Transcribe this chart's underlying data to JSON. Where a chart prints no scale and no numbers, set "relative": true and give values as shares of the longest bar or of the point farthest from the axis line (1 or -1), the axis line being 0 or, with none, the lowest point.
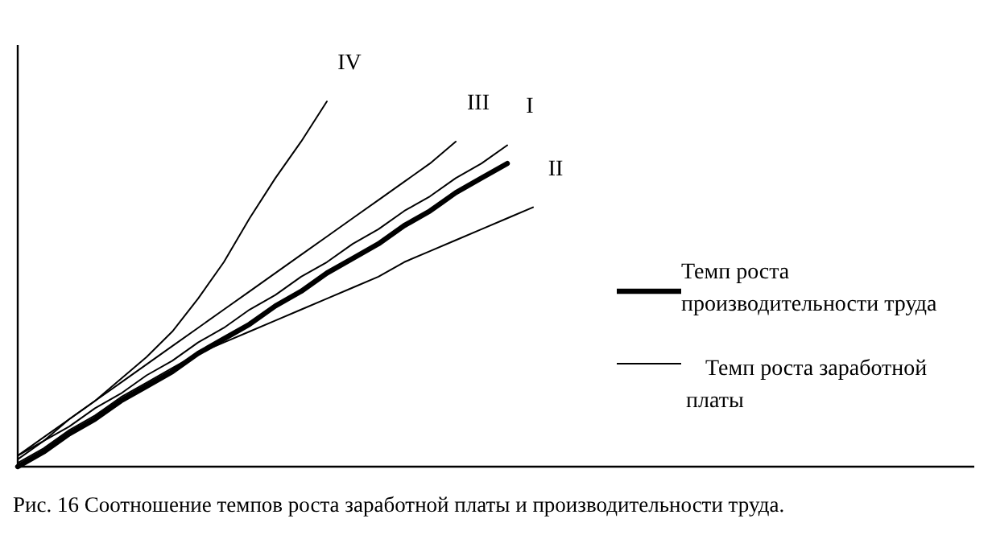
{
  "chart_data": {
    "type": "line",
    "relative": true,
    "legend": "right",
    "categories": [
      null,
      null,
      null,
      null,
      null,
      null,
      null,
      null,
      null,
      null,
      null,
      null,
      null,
      null,
      null,
      null,
      null,
      null,
      null,
      null,
      null,
      null,
      null,
      null,
      null,
      null,
      null,
      null,
      null,
      null,
      null,
      null,
      null,
      null,
      null,
      null,
      null
    ],
    "series": [
      {
        "name": "Темп роста производительности труда",
        "color": "#000000",
        "values": [
          0,
          0.04,
          0.09,
          0.13,
          0.18,
          0.22,
          0.26,
          0.31,
          0.35,
          0.39,
          0.44,
          0.48,
          0.53,
          0.57,
          0.61,
          0.66,
          0.7,
          0.75,
          0.79,
          0.83,
          null,
          null,
          null,
          null,
          null,
          null,
          null,
          null,
          null,
          null,
          null,
          null,
          null,
          null,
          null,
          null,
          null
        ]
      },
      {
        "name": "I",
        "color": "#000000",
        "values": [
          0.02,
          0.07,
          0.11,
          0.16,
          0.2,
          0.25,
          0.29,
          0.34,
          0.38,
          0.43,
          0.47,
          0.52,
          0.56,
          0.61,
          0.65,
          0.7,
          0.74,
          0.79,
          0.83,
          0.88,
          null,
          null,
          null,
          null,
          null,
          null,
          null,
          null,
          null,
          null,
          null,
          null,
          null,
          null,
          null,
          null,
          null
        ]
      },
      {
        "name": "II",
        "color": "#000000",
        "values": [
          0.01,
          0.05,
          0.1,
          0.14,
          0.19,
          0.23,
          0.27,
          0.31,
          0.34,
          0.37,
          0.4,
          0.43,
          0.46,
          0.49,
          0.52,
          0.56,
          0.59,
          0.62,
          0.65,
          0.68,
          0.71,
          null,
          null,
          null,
          null,
          null,
          null,
          null,
          null,
          null,
          null,
          null,
          null,
          null,
          null,
          null,
          null
        ]
      },
      {
        "name": "III",
        "color": "#000000",
        "values": [
          0.03,
          0.08,
          0.13,
          0.18,
          0.23,
          0.28,
          0.33,
          0.38,
          0.43,
          0.48,
          0.53,
          0.58,
          0.63,
          0.68,
          0.73,
          0.78,
          0.83,
          0.89,
          null,
          null,
          null,
          null,
          null,
          null,
          null,
          null,
          null,
          null,
          null,
          null,
          null,
          null,
          null,
          null,
          null,
          null,
          null
        ]
      },
      {
        "name": "IV",
        "color": "#000000",
        "values": [
          0.03,
          0.07,
          0.13,
          0.18,
          0.24,
          0.3,
          0.37,
          0.46,
          0.56,
          0.68,
          0.79,
          0.89,
          1,
          null,
          null,
          null,
          null,
          null,
          null,
          null,
          null,
          null,
          null,
          null,
          null,
          null,
          null,
          null,
          null,
          null,
          null,
          null,
          null,
          null,
          null,
          null,
          null
        ]
      }
    ],
    "annotations": [
      "Темп роста заработной платы",
      "Рис. 16 Соотношение темпов роста заработной платы и производительности труда."
    ]
  }
}
